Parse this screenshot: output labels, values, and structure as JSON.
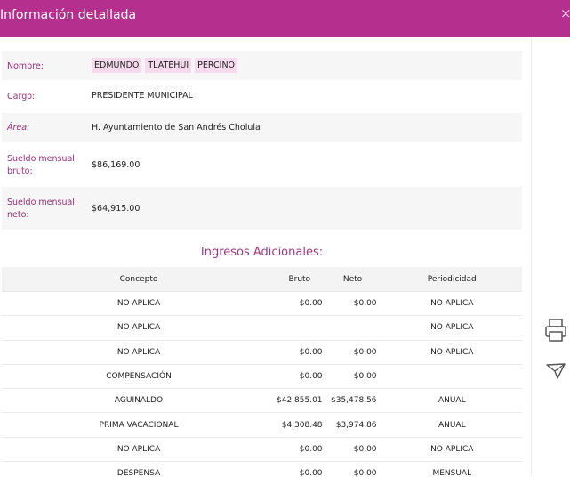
{
  "header": {
    "title": "Información detallada",
    "close_label": "×"
  },
  "fields": {
    "nombre_label": "Nombre:",
    "nombre_parts": [
      "EDMUNDO",
      "TLATEHUI",
      "PERCINO"
    ],
    "cargo_label": "Cargo:",
    "cargo_value": "PRESIDENTE MUNICIPAL",
    "area_label": "Área:",
    "area_value": "H. Ayuntamiento de San Andrés Cholula",
    "bruto_label": "Sueldo mensual bruto:",
    "bruto_value": "$86,169.00",
    "neto_label": "Sueldo mensual neto:",
    "neto_value": "$64,915.00"
  },
  "ingresos": {
    "title": "Ingresos Adicionales:",
    "headers": [
      "Concepto",
      "Bruto",
      "Neto",
      "Periodicidad"
    ],
    "rows": [
      [
        "NO APLICA",
        "$0.00",
        "$0.00",
        "NO APLICA"
      ],
      [
        "NO APLICA",
        "",
        "",
        "NO APLICA"
      ],
      [
        "NO APLICA",
        "$0.00",
        "$0.00",
        "NO APLICA"
      ],
      [
        "COMPENSACIÓN",
        "$0.00",
        "$0.00",
        ""
      ],
      [
        "AGUINALDO",
        "$42,855.01",
        "$35,478.56",
        "ANUAL"
      ],
      [
        "PRIMA VACACIONAL",
        "$4,308.48",
        "$3,974.86",
        "ANUAL"
      ],
      [
        "NO APLICA",
        "$0.00",
        "$0.00",
        "NO APLICA"
      ],
      [
        "DESPENSA",
        "$0.00",
        "$0.00",
        "MENSUAL"
      ]
    ]
  },
  "side_icons": [
    "printer-icon",
    "paper-plane-icon"
  ],
  "colors": {
    "header": "#b52f8e",
    "label": "#9a2d78",
    "chip": "#f6dbee",
    "title": "#a23683"
  }
}
